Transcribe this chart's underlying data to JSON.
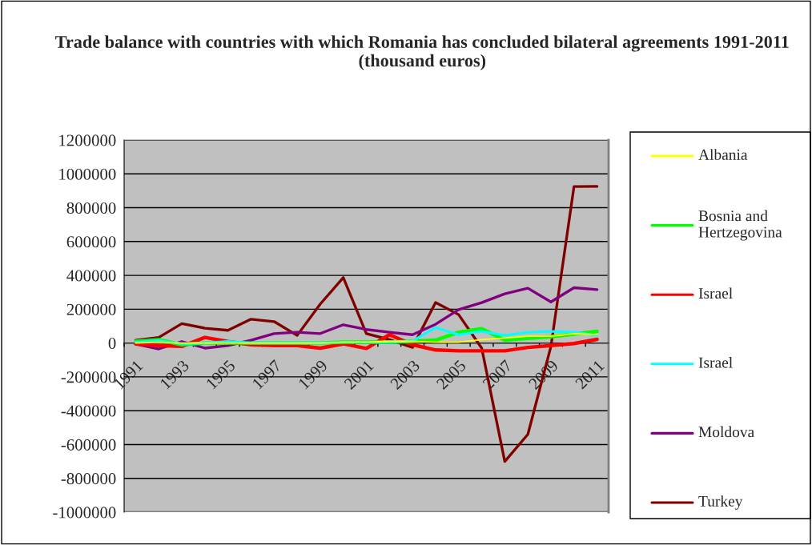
{
  "chart_data": {
    "type": "line",
    "title": "Trade balance with countries with which Romania has concluded bilateral agreements 1991-2011 (thousand euros)",
    "categories": [
      "1991",
      null,
      "1993",
      null,
      "1995",
      null,
      "1997",
      null,
      "1999",
      null,
      "2001",
      null,
      "2003",
      null,
      "2005",
      null,
      "2007",
      null,
      "2009",
      null,
      "2011"
    ],
    "series": [
      {
        "name": "Albania",
        "color": "#ffff00",
        "values": [
          0,
          5000,
          0,
          0,
          0,
          0,
          0,
          0,
          0,
          5000,
          5000,
          10000,
          10000,
          5000,
          5000,
          20000,
          30000,
          40000,
          40000,
          55000,
          50000
        ]
      },
      {
        "name": "Bosnia and Hertzegovina",
        "color": "#00ff00",
        "values": [
          10000,
          20000,
          -10000,
          0,
          0,
          0,
          0,
          0,
          0,
          5000,
          5000,
          5000,
          10000,
          17000,
          64000,
          85000,
          17000,
          28000,
          37000,
          53000,
          69000
        ]
      },
      {
        "name": "Israel",
        "color": "#ff0000",
        "values": [
          -5000,
          -15000,
          -20000,
          33000,
          9000,
          -10000,
          -15000,
          -15000,
          -30000,
          -5000,
          -32000,
          49000,
          -10000,
          -41000,
          -46000,
          -46000,
          -46000,
          -26000,
          -15000,
          -3000,
          22000
        ]
      },
      {
        "name": "Israel",
        "color": "#00ffff",
        "values": [
          5000,
          15000,
          -5000,
          0,
          10000,
          0,
          0,
          0,
          0,
          5000,
          5000,
          5000,
          12000,
          91000,
          49000,
          69000,
          45000,
          63000,
          69000,
          64000,
          45000
        ]
      },
      {
        "name": "Moldova",
        "color": "#800080",
        "values": [
          -6000,
          -35000,
          9000,
          -30000,
          -15000,
          17000,
          56000,
          64000,
          56000,
          108000,
          80000,
          64000,
          49000,
          111000,
          198000,
          239000,
          291000,
          324000,
          243000,
          327000,
          316000
        ]
      },
      {
        "name": "Turkey",
        "color": "#800000",
        "values": [
          17000,
          33000,
          115000,
          88000,
          75000,
          141000,
          127000,
          45000,
          230000,
          387000,
          56000,
          20000,
          -26000,
          240000,
          168000,
          -30000,
          -700000,
          -540000,
          -20000,
          925000,
          926000
        ]
      }
    ],
    "ylim": [
      -1000000,
      1200000
    ],
    "yticks": [
      -1000000,
      -800000,
      -600000,
      -400000,
      -200000,
      0,
      200000,
      400000,
      600000,
      800000,
      1000000,
      1200000
    ],
    "grid": "y",
    "legend": "right",
    "marker": "none",
    "line_style": "solid"
  }
}
